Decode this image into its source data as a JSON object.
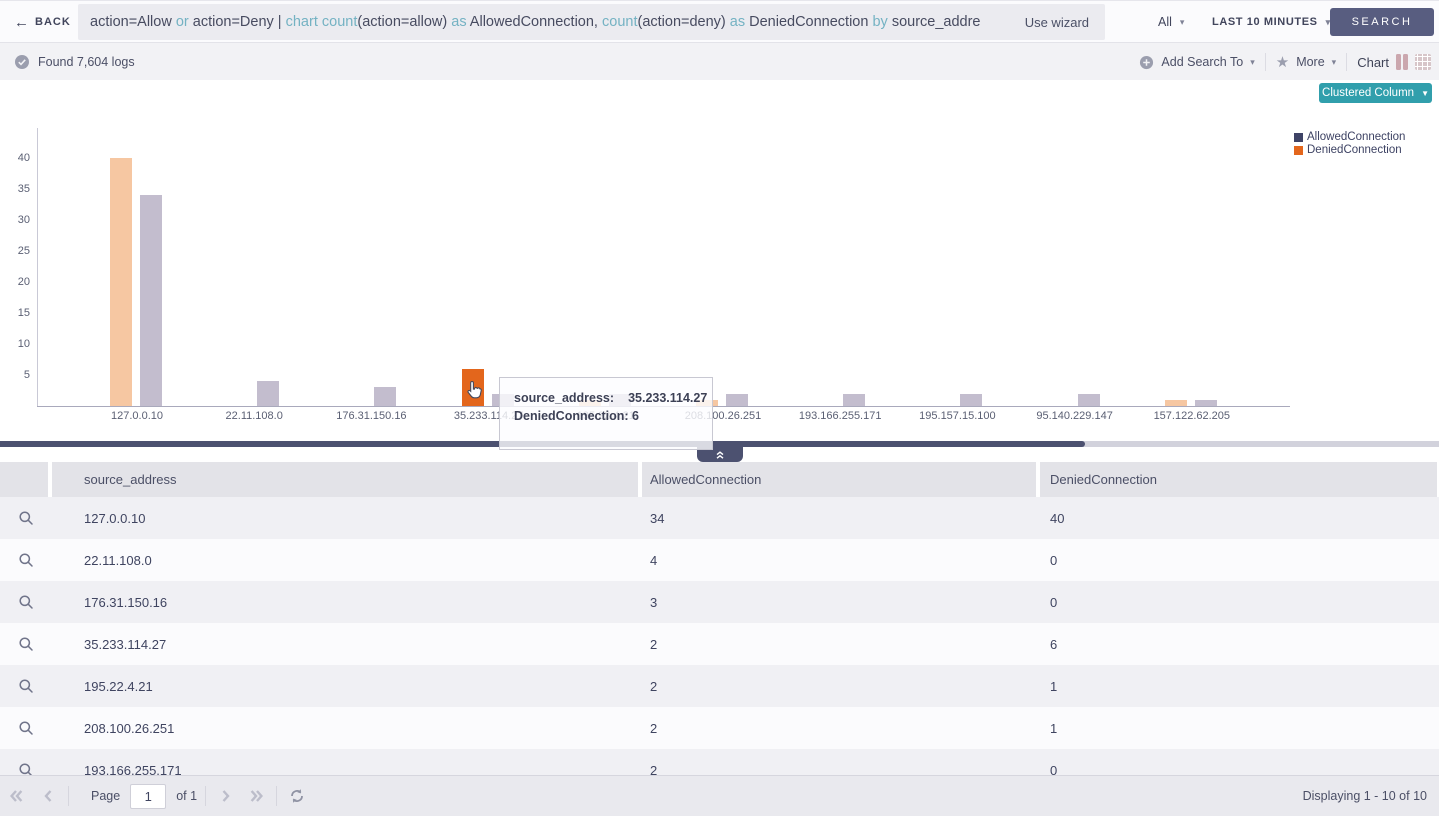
{
  "topbar": {
    "back_label": "BACK",
    "query_tokens": [
      {
        "t": "action=Allow ",
        "c": "dark"
      },
      {
        "t": "or ",
        "c": "teal"
      },
      {
        "t": "action=Deny | ",
        "c": "dark"
      },
      {
        "t": "chart count",
        "c": "teal"
      },
      {
        "t": "(action=allow) ",
        "c": "dark"
      },
      {
        "t": "as ",
        "c": "teal"
      },
      {
        "t": "AllowedConnection, ",
        "c": "dark"
      },
      {
        "t": "count",
        "c": "teal"
      },
      {
        "t": "(action=deny) ",
        "c": "dark"
      },
      {
        "t": "as ",
        "c": "teal"
      },
      {
        "t": "DeniedConnection ",
        "c": "dark"
      },
      {
        "t": "by ",
        "c": "teal"
      },
      {
        "t": "source_addre",
        "c": "dark"
      }
    ],
    "use_wizard_label": "Use wizard",
    "scope_label": "All",
    "time_range_label": "LAST 10 MINUTES",
    "search_label": "SEARCH"
  },
  "resultbar": {
    "found_label": "Found 7,604 logs",
    "add_search_to_label": "Add Search To",
    "more_label": "More",
    "chart_label": "Chart"
  },
  "chart": {
    "type_selector_label": "Clustered Column",
    "legend": [
      {
        "label": "AllowedConnection",
        "color": "#3e4366"
      },
      {
        "label": "DeniedConnection",
        "color": "#e3661c"
      }
    ],
    "tooltip": {
      "label": "source_address:",
      "value": "35.233.114.27",
      "line2": "DeniedConnection: 6"
    }
  },
  "chart_data": {
    "type": "bar",
    "title": "",
    "xlabel": "source_address",
    "ylabel": "",
    "ylim": [
      0,
      45
    ],
    "yticks": [
      5,
      10,
      15,
      20,
      25,
      30,
      35,
      40
    ],
    "grid": false,
    "legend_position": "top-right",
    "categories": [
      "127.0.0.10",
      "22.11.108.0",
      "176.31.150.16",
      "35.233.114.27",
      "195.22.4.21",
      "208.100.26.251",
      "193.166.255.171",
      "195.157.15.100",
      "95.140.229.147",
      "157.122.62.205"
    ],
    "series": [
      {
        "name": "DeniedConnection",
        "values": [
          40,
          0,
          0,
          6,
          1,
          1,
          0,
          0,
          0,
          1
        ],
        "color": "#f6c7a2",
        "highlight_color": "#e3661c"
      },
      {
        "name": "AllowedConnection",
        "values": [
          34,
          4,
          3,
          2,
          2,
          2,
          2,
          2,
          2,
          1
        ],
        "color": "#c3bdce"
      }
    ],
    "highlight": {
      "series": "DeniedConnection",
      "category": "35.233.114.27"
    }
  },
  "table": {
    "columns": {
      "c1": "source_address",
      "c2": "AllowedConnection",
      "c3": "DeniedConnection"
    },
    "rows": [
      {
        "source_address": "127.0.0.10",
        "allowed": "34",
        "denied": "40"
      },
      {
        "source_address": "22.11.108.0",
        "allowed": "4",
        "denied": "0"
      },
      {
        "source_address": "176.31.150.16",
        "allowed": "3",
        "denied": "0"
      },
      {
        "source_address": "35.233.114.27",
        "allowed": "2",
        "denied": "6"
      },
      {
        "source_address": "195.22.4.21",
        "allowed": "2",
        "denied": "1"
      },
      {
        "source_address": "208.100.26.251",
        "allowed": "2",
        "denied": "1"
      },
      {
        "source_address": "193.166.255.171",
        "allowed": "2",
        "denied": "0"
      }
    ]
  },
  "pagination": {
    "page_label": "Page",
    "page_value": "1",
    "of_label": "of 1",
    "displaying_label": "Displaying 1 - 10 of 10"
  }
}
